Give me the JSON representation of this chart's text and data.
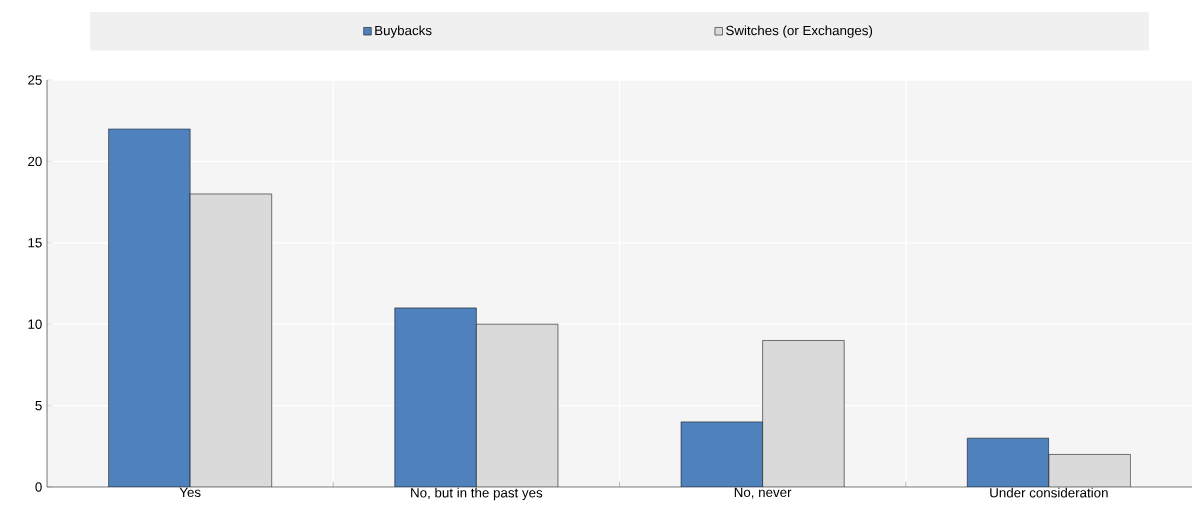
{
  "chart_data": {
    "type": "bar",
    "categories": [
      "Yes",
      "No, but in the past yes",
      "No, never",
      "Under consideration"
    ],
    "series": [
      {
        "name": "Buybacks",
        "color": "#4f81bd",
        "values": [
          22,
          11,
          4,
          3
        ]
      },
      {
        "name": "Switches (or Exchanges)",
        "color": "#dadada",
        "values": [
          18,
          10,
          9,
          2
        ]
      }
    ],
    "ylim": [
      0,
      25
    ],
    "yticks": [
      0,
      5,
      10,
      15,
      20,
      25
    ],
    "grid": true,
    "legend": "top"
  }
}
